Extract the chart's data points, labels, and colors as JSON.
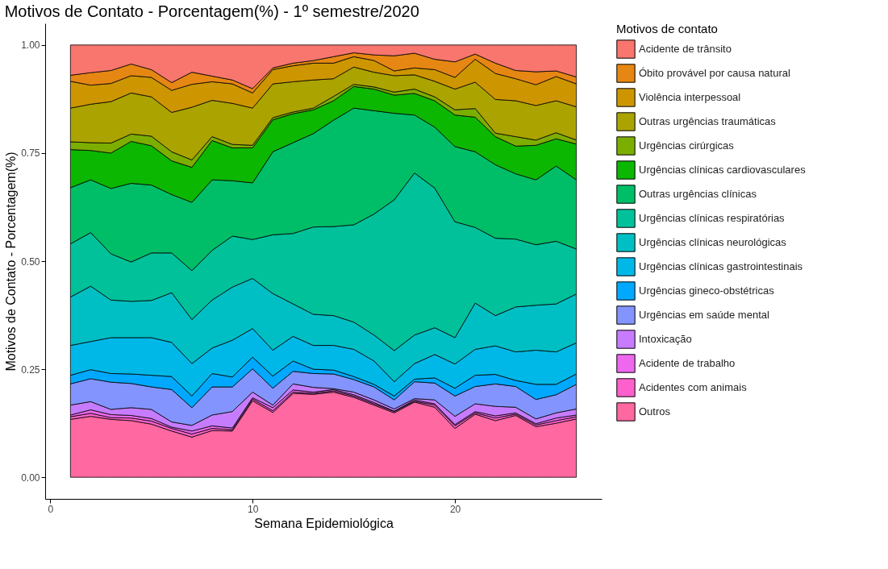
{
  "chart_data": {
    "type": "area",
    "stacked": true,
    "title": "Motivos de Contato - Porcentagem(%) - 1º semestre/2020",
    "xlabel": "Semana Epidemiológica",
    "ylabel": "Motivos de Contato - Porcentagem(%)",
    "legend_title": "Motivos de contato",
    "legend": "right",
    "grid": false,
    "x": [
      1,
      2,
      3,
      4,
      5,
      6,
      7,
      8,
      9,
      10,
      11,
      12,
      13,
      14,
      15,
      16,
      17,
      18,
      19,
      20,
      21,
      22,
      23,
      24,
      25,
      26
    ],
    "xlim": [
      -0.25,
      27.25
    ],
    "xticks": [
      0,
      10,
      20
    ],
    "ylim": [
      -0.05,
      1.05
    ],
    "yticks": [
      {
        "value": 0,
        "label": "0.00"
      },
      {
        "value": 0.25,
        "label": "0.25"
      },
      {
        "value": 0.5,
        "label": "0.50"
      },
      {
        "value": 0.75,
        "label": "0.75"
      },
      {
        "value": 1,
        "label": "1.00"
      }
    ],
    "series": [
      {
        "name": "Outros",
        "color": "#ff68a1",
        "values": [
          0.134,
          0.141,
          0.134,
          0.131,
          0.123,
          0.107,
          0.093,
          0.108,
          0.107,
          0.177,
          0.15,
          0.194,
          0.192,
          0.197,
          0.185,
          0.167,
          0.149,
          0.174,
          0.162,
          0.113,
          0.146,
          0.131,
          0.143,
          0.117,
          0.125,
          0.135
        ]
      },
      {
        "name": "Acidentes com animais",
        "color": "#ff61cc",
        "values": [
          0.006,
          0.007,
          0.004,
          0.006,
          0.007,
          0.006,
          0.007,
          0.005,
          0.003,
          0.004,
          0.004,
          0.003,
          0.002,
          0.003,
          0.003,
          0.003,
          0.003,
          0.002,
          0.005,
          0.006,
          0.003,
          0.006,
          0.003,
          0.004,
          0.006,
          0.005
        ]
      },
      {
        "name": "Acidente de trabalho",
        "color": "#ed68ed",
        "values": [
          0.004,
          0.008,
          0.007,
          0.006,
          0.006,
          0.003,
          0.007,
          0.006,
          0.004,
          0.003,
          0.007,
          0.005,
          0.003,
          0.003,
          0.003,
          0.003,
          0.001,
          0.003,
          0.003,
          0.003,
          0.003,
          0.005,
          0.003,
          0.003,
          0.006,
          0.004
        ]
      },
      {
        "name": "Intoxicação",
        "color": "#c77cff",
        "values": [
          0.023,
          0.019,
          0.012,
          0.018,
          0.021,
          0.012,
          0.013,
          0.025,
          0.038,
          0.013,
          0.006,
          0.014,
          0.011,
          0.002,
          0.006,
          0.006,
          0.005,
          0.003,
          0.009,
          0.019,
          0.018,
          0.022,
          0.013,
          0.011,
          0.012,
          0.014
        ]
      },
      {
        "name": "Urgências em saúde mental",
        "color": "#8494ff",
        "values": [
          0.049,
          0.053,
          0.063,
          0.056,
          0.052,
          0.075,
          0.041,
          0.065,
          0.057,
          0.054,
          0.039,
          0.029,
          0.032,
          0.034,
          0.029,
          0.03,
          0.021,
          0.039,
          0.039,
          0.047,
          0.04,
          0.052,
          0.048,
          0.045,
          0.042,
          0.057
        ]
      },
      {
        "name": "Urgências gineco-obstétricas",
        "color": "#00a9ff",
        "values": [
          0.02,
          0.021,
          0.02,
          0.022,
          0.027,
          0.03,
          0.027,
          0.031,
          0.023,
          0.027,
          0.028,
          0.024,
          0.01,
          0.009,
          0.007,
          0.006,
          0.009,
          0.006,
          0.012,
          0.018,
          0.026,
          0.022,
          0.014,
          0.035,
          0.024,
          0.024
        ]
      },
      {
        "name": "Urgências clínicas gastrointestinais",
        "color": "#00b8e7",
        "values": [
          0.069,
          0.065,
          0.083,
          0.084,
          0.087,
          0.079,
          0.075,
          0.059,
          0.085,
          0.066,
          0.06,
          0.057,
          0.055,
          0.057,
          0.063,
          0.054,
          0.033,
          0.036,
          0.054,
          0.056,
          0.06,
          0.066,
          0.066,
          0.079,
          0.075,
          0.072
        ]
      },
      {
        "name": "Urgências clínicas neurológicas",
        "color": "#00bfc4",
        "values": [
          0.112,
          0.128,
          0.087,
          0.084,
          0.086,
          0.115,
          0.102,
          0.111,
          0.123,
          0.116,
          0.131,
          0.075,
          0.072,
          0.069,
          0.063,
          0.06,
          0.072,
          0.066,
          0.062,
          0.061,
          0.107,
          0.07,
          0.104,
          0.104,
          0.111,
          0.113
        ]
      },
      {
        "name": "Urgências clínicas respiratórias",
        "color": "#00c19a",
        "values": [
          0.123,
          0.124,
          0.107,
          0.091,
          0.11,
          0.092,
          0.113,
          0.115,
          0.118,
          0.09,
          0.136,
          0.163,
          0.202,
          0.206,
          0.225,
          0.28,
          0.349,
          0.375,
          0.323,
          0.268,
          0.175,
          0.179,
          0.157,
          0.14,
          0.145,
          0.104
        ]
      },
      {
        "name": "Outras urgências clínicas",
        "color": "#00be67",
        "values": [
          0.13,
          0.122,
          0.151,
          0.182,
          0.157,
          0.135,
          0.158,
          0.163,
          0.128,
          0.131,
          0.192,
          0.21,
          0.216,
          0.246,
          0.27,
          0.239,
          0.2,
          0.134,
          0.141,
          0.174,
          0.175,
          0.17,
          0.151,
          0.15,
          0.174,
          0.16
        ]
      },
      {
        "name": "Urgências clínicas cardiovasculares",
        "color": "#0cb702",
        "values": [
          0.088,
          0.068,
          0.082,
          0.097,
          0.091,
          0.078,
          0.081,
          0.091,
          0.076,
          0.081,
          0.074,
          0.067,
          0.055,
          0.045,
          0.05,
          0.05,
          0.042,
          0.05,
          0.061,
          0.073,
          0.08,
          0.065,
          0.064,
          0.08,
          0.063,
          0.083
        ]
      },
      {
        "name": "Urgências cirúrgicas",
        "color": "#7cae00",
        "values": [
          0.018,
          0.018,
          0.023,
          0.017,
          0.022,
          0.021,
          0.017,
          0.009,
          0.008,
          0.006,
          0.005,
          0.004,
          0.004,
          0.01,
          0.005,
          0.005,
          0.007,
          0.01,
          0.009,
          0.012,
          0.02,
          0.008,
          0.022,
          0.012,
          0.014,
          0.009
        ]
      },
      {
        "name": "Outras urgências traumáticas",
        "color": "#aba300",
        "values": [
          0.078,
          0.089,
          0.096,
          0.095,
          0.091,
          0.091,
          0.122,
          0.084,
          0.095,
          0.086,
          0.078,
          0.07,
          0.065,
          0.041,
          0.04,
          0.034,
          0.038,
          0.033,
          0.036,
          0.048,
          0.061,
          0.078,
          0.083,
          0.08,
          0.074,
          0.077
        ]
      },
      {
        "name": "Violência interpessoal",
        "color": "#cd9600",
        "values": [
          0.062,
          0.044,
          0.042,
          0.04,
          0.045,
          0.051,
          0.053,
          0.043,
          0.045,
          0.035,
          0.033,
          0.037,
          0.039,
          0.036,
          0.024,
          0.027,
          0.011,
          0.016,
          0.027,
          0.027,
          0.053,
          0.06,
          0.051,
          0.048,
          0.056,
          0.053
        ]
      },
      {
        "name": "Óbito provável por causa natural",
        "color": "#e68613",
        "values": [
          0.014,
          0.029,
          0.03,
          0.027,
          0.018,
          0.018,
          0.028,
          0.013,
          0.009,
          0.01,
          0.004,
          0.006,
          0.006,
          0.015,
          0.009,
          0.013,
          0.035,
          0.034,
          0.024,
          0.036,
          0.012,
          0.024,
          0.019,
          0.03,
          0.013,
          0.016
        ]
      },
      {
        "name": "Acidente de trânsito",
        "color": "#f8766d",
        "values": [
          0.07,
          0.064,
          0.059,
          0.044,
          0.057,
          0.087,
          0.063,
          0.072,
          0.081,
          0.101,
          0.053,
          0.042,
          0.036,
          0.027,
          0.018,
          0.023,
          0.025,
          0.019,
          0.033,
          0.039,
          0.021,
          0.042,
          0.059,
          0.062,
          0.06,
          0.074
        ]
      }
    ]
  }
}
